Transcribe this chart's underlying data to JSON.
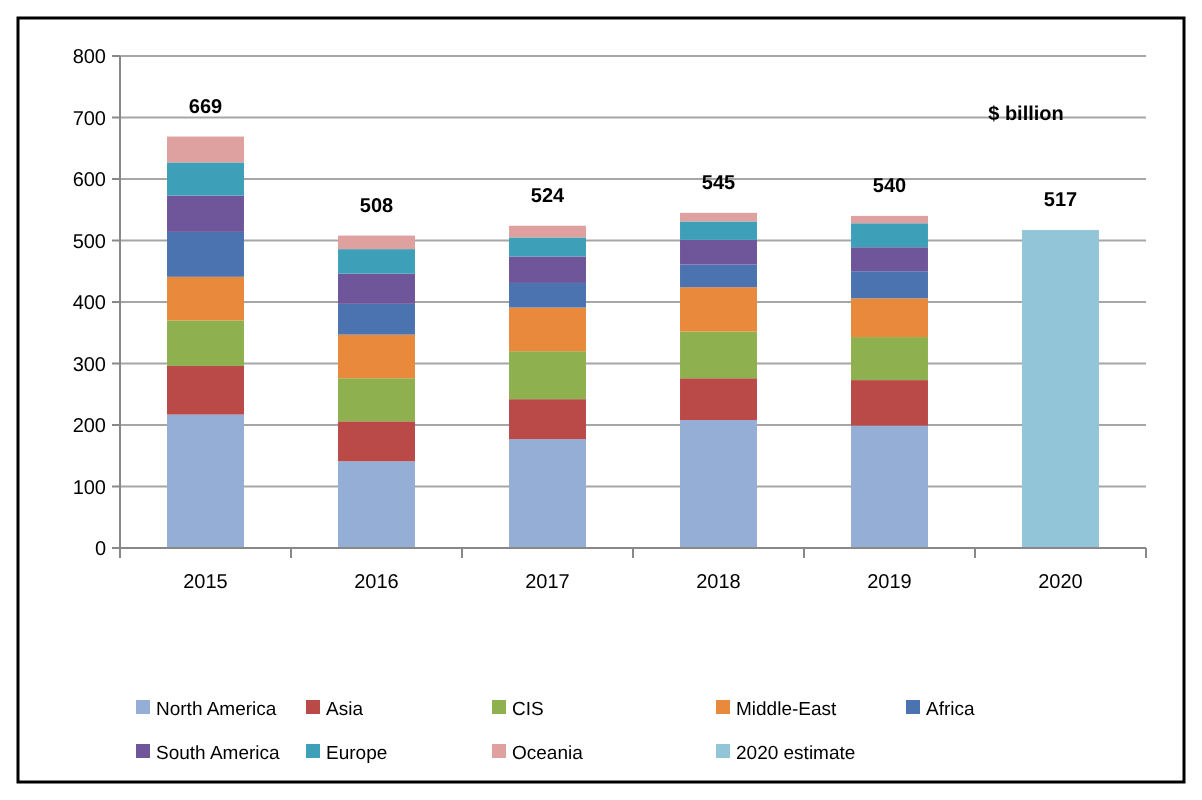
{
  "chart_data": {
    "type": "bar",
    "stacked": true,
    "categories": [
      "2015",
      "2016",
      "2017",
      "2018",
      "2019",
      "2020"
    ],
    "series": [
      {
        "name": "North America",
        "color": "#95aed6",
        "values": [
          217,
          141,
          177,
          208,
          199,
          null
        ]
      },
      {
        "name": "Asia",
        "color": "#b94a48",
        "values": [
          79,
          65,
          65,
          68,
          74,
          null
        ]
      },
      {
        "name": "CIS",
        "color": "#8fb04f",
        "values": [
          74,
          70,
          78,
          76,
          70,
          null
        ]
      },
      {
        "name": "Middle-East",
        "color": "#e8893b",
        "values": [
          71,
          71,
          71,
          72,
          63,
          null
        ]
      },
      {
        "name": "Africa",
        "color": "#4a73b0",
        "values": [
          73,
          50,
          40,
          37,
          44,
          null
        ]
      },
      {
        "name": "South America",
        "color": "#6f559a",
        "values": [
          59,
          49,
          43,
          40,
          39,
          null
        ]
      },
      {
        "name": "Europe",
        "color": "#3ea0b8",
        "values": [
          54,
          40,
          31,
          30,
          39,
          null
        ]
      },
      {
        "name": "Oceania",
        "color": "#dea1a0",
        "values": [
          42,
          22,
          19,
          14,
          12,
          null
        ]
      },
      {
        "name": "2020 estimate",
        "color": "#92c5d8",
        "values": [
          null,
          null,
          null,
          null,
          null,
          517
        ]
      }
    ],
    "totals": [
      "669",
      "508",
      "524",
      "545",
      "540",
      "517"
    ],
    "annotations": [
      "$ billion"
    ],
    "ylim": [
      0,
      800
    ],
    "yticks": [
      0,
      100,
      200,
      300,
      400,
      500,
      600,
      700,
      800
    ],
    "grid": "y",
    "legend": "bottom"
  }
}
